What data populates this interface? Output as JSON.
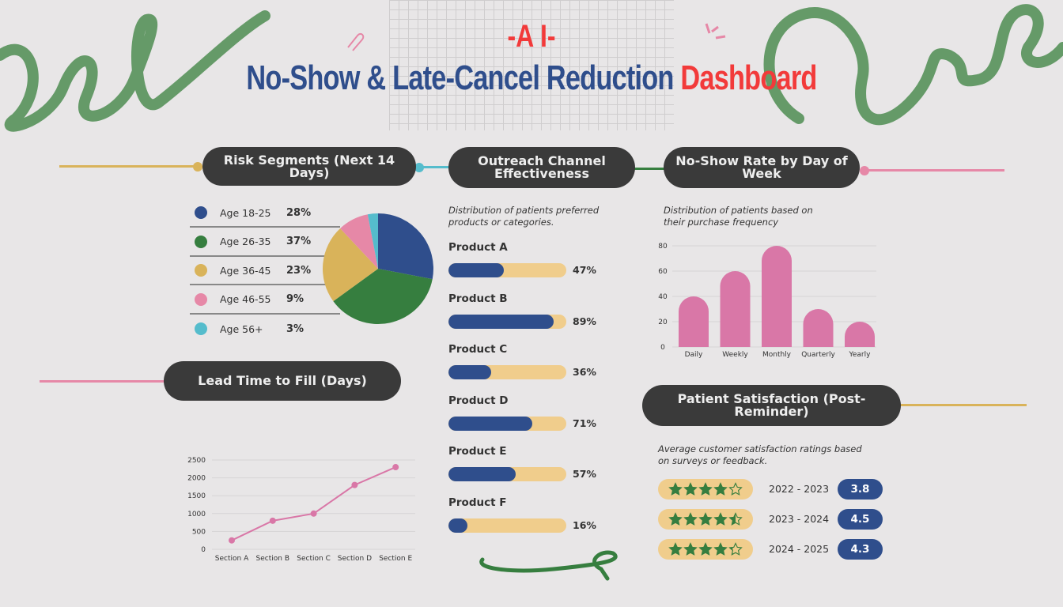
{
  "header": {
    "prefix": "-A I-",
    "title_main": "No-Show & Late-Cancel Reduction",
    "title_accent": "Dashboard"
  },
  "colors": {
    "blue": "#2f4e8c",
    "green": "#367e3f",
    "yellow": "#d9b35a",
    "pink": "#e688a7",
    "cyan": "#55bccc",
    "red": "#f23a3a",
    "dark": "#3a3a3a",
    "bar_track": "#f0cd8c",
    "bar_pink": "#d977a7"
  },
  "sections": {
    "risk": "Risk Segments (Next 14 Days)",
    "outreach": "Outreach Channel Effectiveness",
    "noshow": "No-Show Rate by Day of Week",
    "lead": "Lead Time to Fill (Days)",
    "satisfaction": "Patient Satisfaction (Post-Reminder)"
  },
  "descriptions": {
    "outreach": "Distribution of patients preferred products or categories.",
    "noshow": "Distribution of patients based on their purchase frequency",
    "satisfaction": "Average customer satisfaction ratings based on surveys or feedback."
  },
  "chart_data": [
    {
      "type": "pie",
      "categories": [
        "Age 18-25",
        "Age 26-35",
        "Age 36-45",
        "Age 46-55",
        "Age 56+"
      ],
      "values": [
        28,
        37,
        23,
        9,
        3
      ],
      "labels": [
        "28%",
        "37%",
        "23%",
        "9%",
        "3%"
      ],
      "colors": [
        "#2f4e8c",
        "#367e3f",
        "#d9b35a",
        "#e688a7",
        "#55bccc"
      ],
      "legend": "left"
    },
    {
      "type": "bar",
      "orientation": "horizontal",
      "categories": [
        "Product A",
        "Product B",
        "Product C",
        "Product D",
        "Product E",
        "Product F"
      ],
      "values": [
        47,
        89,
        36,
        71,
        57,
        16
      ],
      "labels": [
        "47%",
        "89%",
        "36%",
        "71%",
        "57%",
        "16%"
      ],
      "xlim": [
        0,
        100
      ]
    },
    {
      "type": "bar",
      "categories": [
        "Daily",
        "Weekly",
        "Monthly",
        "Quarterly",
        "Yearly"
      ],
      "values": [
        40,
        60,
        80,
        30,
        20
      ],
      "ylim": [
        0,
        80
      ],
      "yticks": [
        0,
        20,
        40,
        60,
        80
      ],
      "grid": true
    },
    {
      "type": "line",
      "categories": [
        "Section A",
        "Section B",
        "Section C",
        "Section D",
        "Section E"
      ],
      "values": [
        250,
        800,
        1000,
        1800,
        2300
      ],
      "ylim": [
        0,
        2500
      ],
      "yticks": [
        0,
        500,
        1000,
        1500,
        2000,
        2500
      ],
      "grid": true
    },
    {
      "type": "table",
      "rows": [
        {
          "period": "2022 - 2023",
          "rating": 3.8,
          "label": "3.8"
        },
        {
          "period": "2023 - 2024",
          "rating": 4.5,
          "label": "4.5"
        },
        {
          "period": "2024 - 2025",
          "rating": 4.3,
          "label": "4.3"
        }
      ],
      "max_rating": 5
    }
  ]
}
